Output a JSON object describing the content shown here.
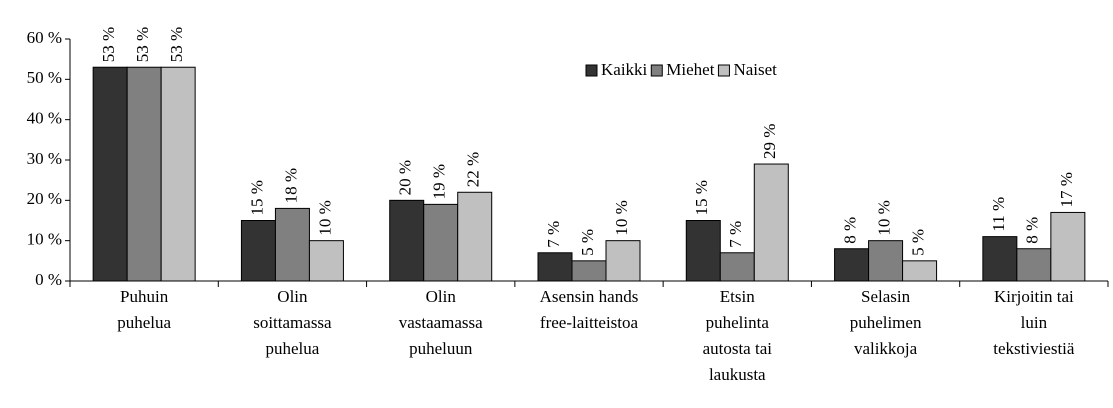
{
  "chart_data": {
    "type": "bar",
    "categories": [
      [
        "Puhuin",
        "puhelua"
      ],
      [
        "Olin",
        "soittamassa",
        "puhelua"
      ],
      [
        "Olin",
        "vastaamassa",
        "puheluun"
      ],
      [
        "Asensin hands",
        "free-laitteistoa"
      ],
      [
        "Etsin",
        "puhelinta",
        "autosta tai",
        "laukusta"
      ],
      [
        "Selasin",
        "puhelimen",
        "valikkoja"
      ],
      [
        "Kirjoitin tai",
        "luin",
        "tekstiviestiä"
      ]
    ],
    "series": [
      {
        "name": "Kaikki",
        "color": "#333333",
        "values": [
          53,
          15,
          20,
          7,
          15,
          8,
          11
        ],
        "value_labels": [
          "53 %",
          "15 %",
          "20 %",
          "7 %",
          "15 %",
          "8 %",
          "11 %"
        ]
      },
      {
        "name": "Miehet",
        "color": "#808080",
        "values": [
          53,
          18,
          19,
          5,
          7,
          10,
          8
        ],
        "value_labels": [
          "53 %",
          "18 %",
          "19 %",
          "5 %",
          "7 %",
          "10 %",
          "8 %"
        ]
      },
      {
        "name": "Naiset",
        "color": "#c0c0c0",
        "values": [
          53,
          10,
          22,
          10,
          29,
          5,
          17
        ],
        "value_labels": [
          "53 %",
          "10 %",
          "22 %",
          "10 %",
          "29 %",
          "5 %",
          "17 %"
        ]
      }
    ],
    "ylim": [
      0,
      60
    ],
    "yticks": [
      {
        "value": 0,
        "label": "0 %"
      },
      {
        "value": 10,
        "label": "10 %"
      },
      {
        "value": 20,
        "label": "20 %"
      },
      {
        "value": 30,
        "label": "30 %"
      },
      {
        "value": 40,
        "label": "40 %"
      },
      {
        "value": 50,
        "label": "50 %"
      },
      {
        "value": 60,
        "label": "60 %"
      }
    ],
    "grid": false,
    "legend": "top"
  }
}
